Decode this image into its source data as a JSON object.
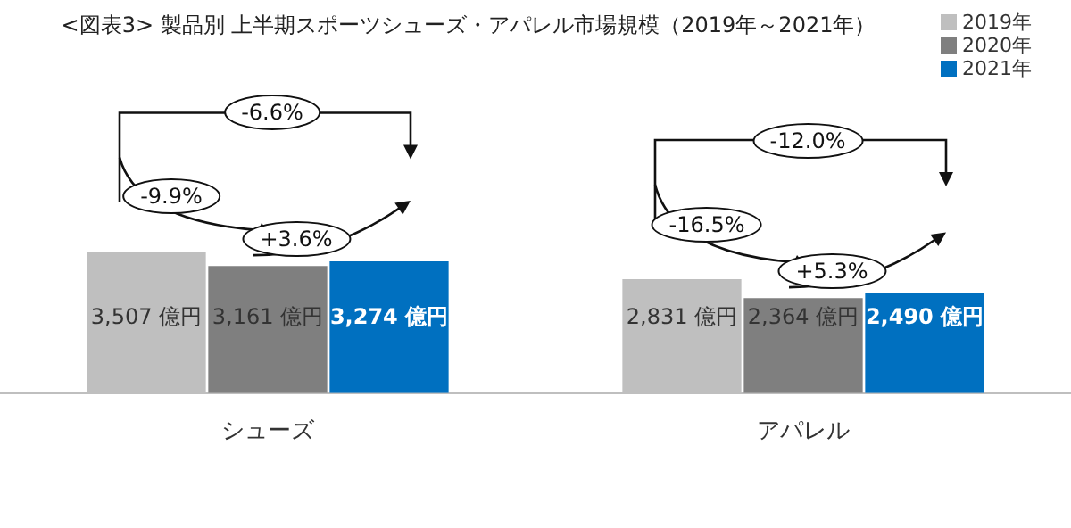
{
  "chart_data": {
    "type": "bar",
    "title": "<図表3> 製品別 上半期スポーツシューズ・アパレル市場規模（2019年～2021年）",
    "categories": [
      "シューズ",
      "アパレル"
    ],
    "series": [
      {
        "name": "2019年",
        "color": "#bfbfbf",
        "values": [
          3507,
          2831
        ],
        "value_labels": [
          "3,507 億円",
          "2,831 億円"
        ]
      },
      {
        "name": "2020年",
        "color": "#7f7f7f",
        "values": [
          3161,
          2364
        ],
        "value_labels": [
          "3,161 億円",
          "2,364 億円"
        ]
      },
      {
        "name": "2021年",
        "color": "#0070c0",
        "values": [
          3274,
          2490
        ],
        "value_labels": [
          "3,274 億円",
          "2,490 億円"
        ]
      }
    ],
    "annotations": [
      "-6.6%",
      "-9.9%",
      "+3.6%",
      "-12.0%",
      "-16.5%",
      "+5.3%"
    ],
    "legend": "top right",
    "grid": false
  }
}
